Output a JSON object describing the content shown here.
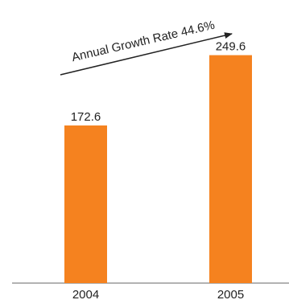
{
  "chart_data": {
    "type": "bar",
    "categories": [
      "2004",
      "2005"
    ],
    "values": [
      172.6,
      249.6
    ],
    "color": "#f5821f",
    "ylim": [
      0,
      310
    ],
    "annotation": "Annual Growth Rate 44.6%"
  }
}
